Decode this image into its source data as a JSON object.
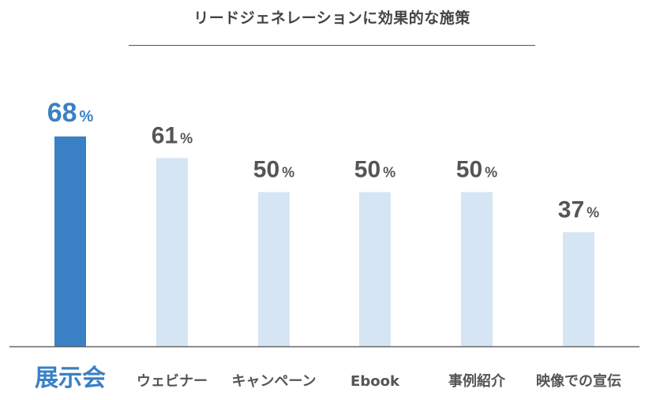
{
  "chart_data": {
    "type": "bar",
    "title": "リードジェネレーションに効果的な施策",
    "categories": [
      "展示会",
      "ウェビナー",
      "キャンペーン",
      "Ebook",
      "事例紹介",
      "映像での宣伝"
    ],
    "values": [
      68,
      61,
      50,
      50,
      50,
      37
    ],
    "value_suffix": "%",
    "highlight_index": 0,
    "ylim": [
      0,
      100
    ],
    "grid": false,
    "legend": "none",
    "colors": {
      "highlight_bar": "#3a80c4",
      "bar": "#d6e5f4",
      "highlight_text": "#3a80c4",
      "text": "#555555",
      "title": "#444444",
      "axis": "#666666"
    }
  }
}
